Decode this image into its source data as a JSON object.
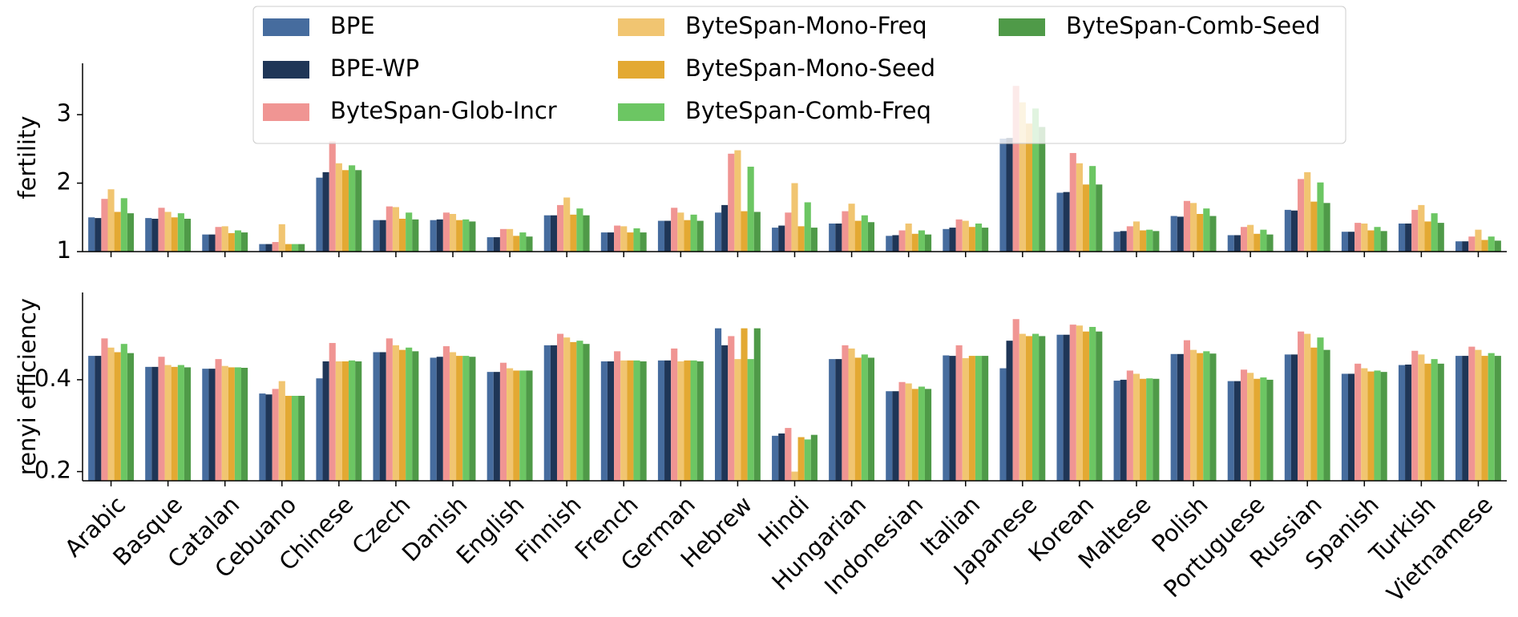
{
  "chart_data": {
    "type": "bar",
    "categories": [
      "Arabic",
      "Basque",
      "Catalan",
      "Cebuano",
      "Chinese",
      "Czech",
      "Danish",
      "English",
      "Finnish",
      "French",
      "German",
      "Hebrew",
      "Hindi",
      "Hungarian",
      "Indonesian",
      "Italian",
      "Japanese",
      "Korean",
      "Maltese",
      "Polish",
      "Portuguese",
      "Russian",
      "Spanish",
      "Turkish",
      "Vietnamese"
    ],
    "series": [
      {
        "name": "BPE",
        "color": "#466c9e"
      },
      {
        "name": "BPE-WP",
        "color": "#1f3657"
      },
      {
        "name": "ByteSpan-Glob-Incr",
        "color": "#f09593"
      },
      {
        "name": "ByteSpan-Mono-Freq",
        "color": "#f1c571"
      },
      {
        "name": "ByteSpan-Mono-Seed",
        "color": "#e3a933"
      },
      {
        "name": "ByteSpan-Comb-Freq",
        "color": "#6cc663"
      },
      {
        "name": "ByteSpan-Comb-Seed",
        "color": "#4f9a48"
      }
    ],
    "legend": "upper center",
    "panels": [
      {
        "ylabel": "fertility",
        "ylim": [
          1,
          3.75
        ],
        "yticks": [
          1,
          2,
          3
        ],
        "series": [
          {
            "values": [
              1.5,
              1.49,
              1.25,
              1.11,
              2.08,
              1.46,
              1.46,
              1.21,
              1.53,
              1.28,
              1.45,
              1.57,
              1.35,
              1.41,
              1.23,
              1.33,
              2.65,
              1.86,
              1.29,
              1.52,
              1.24,
              1.61,
              1.29,
              1.41,
              1.15
            ]
          },
          {
            "values": [
              1.49,
              1.48,
              1.25,
              1.11,
              2.16,
              1.46,
              1.47,
              1.21,
              1.53,
              1.28,
              1.45,
              1.68,
              1.38,
              1.41,
              1.24,
              1.35,
              2.66,
              1.87,
              1.3,
              1.51,
              1.24,
              1.6,
              1.29,
              1.41,
              1.15
            ]
          },
          {
            "values": [
              1.77,
              1.64,
              1.36,
              1.14,
              2.61,
              1.66,
              1.57,
              1.33,
              1.68,
              1.38,
              1.64,
              2.43,
              1.57,
              1.59,
              1.31,
              1.47,
              3.42,
              2.44,
              1.37,
              1.74,
              1.36,
              2.06,
              1.42,
              1.61,
              1.22
            ]
          },
          {
            "values": [
              1.91,
              1.58,
              1.37,
              1.4,
              2.29,
              1.65,
              1.55,
              1.33,
              1.79,
              1.37,
              1.57,
              2.48,
              2.0,
              1.7,
              1.41,
              1.45,
              3.18,
              2.29,
              1.44,
              1.71,
              1.39,
              2.16,
              1.41,
              1.68,
              1.32
            ]
          },
          {
            "values": [
              1.58,
              1.5,
              1.27,
              1.11,
              2.19,
              1.48,
              1.46,
              1.23,
              1.54,
              1.28,
              1.46,
              1.59,
              1.37,
              1.45,
              1.26,
              1.36,
              2.87,
              1.98,
              1.31,
              1.55,
              1.26,
              1.73,
              1.31,
              1.44,
              1.17
            ]
          },
          {
            "values": [
              1.78,
              1.56,
              1.31,
              1.11,
              2.26,
              1.57,
              1.47,
              1.28,
              1.63,
              1.34,
              1.54,
              2.24,
              1.72,
              1.53,
              1.31,
              1.41,
              3.09,
              2.25,
              1.32,
              1.63,
              1.32,
              2.01,
              1.36,
              1.56,
              1.22
            ]
          },
          {
            "values": [
              1.56,
              1.48,
              1.28,
              1.11,
              2.19,
              1.47,
              1.44,
              1.22,
              1.53,
              1.28,
              1.45,
              1.58,
              1.35,
              1.43,
              1.25,
              1.35,
              2.82,
              1.98,
              1.3,
              1.52,
              1.25,
              1.71,
              1.3,
              1.42,
              1.16
            ]
          }
        ]
      },
      {
        "ylabel": "renyi efficiency",
        "ylim": [
          0.18,
          0.59
        ],
        "yticks": [
          0.2,
          0.4
        ],
        "series": [
          {
            "values": [
              0.452,
              0.428,
              0.424,
              0.37,
              0.403,
              0.46,
              0.448,
              0.417,
              0.475,
              0.44,
              0.442,
              0.512,
              0.278,
              0.445,
              0.375,
              0.453,
              0.425,
              0.498,
              0.398,
              0.456,
              0.397,
              0.455,
              0.413,
              0.432,
              0.452
            ]
          },
          {
            "values": [
              0.452,
              0.428,
              0.424,
              0.368,
              0.44,
              0.46,
              0.45,
              0.417,
              0.475,
              0.44,
              0.442,
              0.475,
              0.283,
              0.445,
              0.375,
              0.452,
              0.485,
              0.498,
              0.4,
              0.456,
              0.397,
              0.455,
              0.413,
              0.433,
              0.452
            ]
          },
          {
            "values": [
              0.49,
              0.45,
              0.445,
              0.38,
              0.48,
              0.49,
              0.473,
              0.437,
              0.5,
              0.462,
              0.468,
              0.495,
              0.295,
              0.475,
              0.395,
              0.475,
              0.532,
              0.52,
              0.42,
              0.486,
              0.422,
              0.505,
              0.435,
              0.463,
              0.472
            ]
          },
          {
            "values": [
              0.47,
              0.432,
              0.43,
              0.397,
              0.44,
              0.475,
              0.46,
              0.425,
              0.492,
              0.442,
              0.44,
              0.445,
              0.2,
              0.468,
              0.392,
              0.447,
              0.5,
              0.518,
              0.413,
              0.465,
              0.415,
              0.5,
              0.425,
              0.455,
              0.465
            ]
          },
          {
            "values": [
              0.46,
              0.428,
              0.427,
              0.365,
              0.44,
              0.465,
              0.452,
              0.42,
              0.482,
              0.442,
              0.442,
              0.512,
              0.275,
              0.448,
              0.38,
              0.452,
              0.495,
              0.505,
              0.402,
              0.458,
              0.402,
              0.47,
              0.418,
              0.435,
              0.452
            ]
          },
          {
            "values": [
              0.478,
              0.432,
              0.427,
              0.365,
              0.442,
              0.47,
              0.452,
              0.42,
              0.485,
              0.442,
              0.442,
              0.445,
              0.27,
              0.455,
              0.385,
              0.452,
              0.5,
              0.515,
              0.403,
              0.462,
              0.405,
              0.492,
              0.42,
              0.445,
              0.458
            ]
          },
          {
            "values": [
              0.458,
              0.427,
              0.426,
              0.365,
              0.44,
              0.462,
              0.45,
              0.42,
              0.478,
              0.44,
              0.44,
              0.512,
              0.28,
              0.448,
              0.38,
              0.452,
              0.495,
              0.505,
              0.402,
              0.457,
              0.4,
              0.465,
              0.417,
              0.435,
              0.452
            ]
          }
        ]
      }
    ]
  }
}
